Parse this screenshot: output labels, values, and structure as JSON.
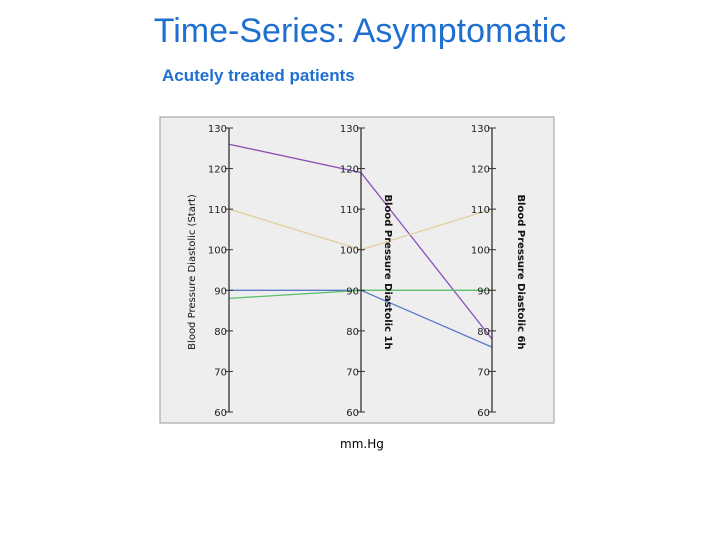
{
  "page": {
    "title": "Time-Series: Asymptomatic",
    "subtitle": "Acutely treated patients",
    "unit_label": "mm.Hg"
  },
  "chart_data": {
    "type": "line",
    "subtype": "parallel-coordinates",
    "axes": [
      {
        "label": "Blood Pressure Diastolic (Start)",
        "ticks": [
          "130",
          "120",
          "110",
          "100",
          "90",
          "80",
          "70",
          "60"
        ],
        "range": [
          60,
          130
        ]
      },
      {
        "label": "Blood Pressure Diastolic 1h",
        "ticks": [
          "130",
          "120",
          "110",
          "100",
          "90",
          "80",
          "70",
          "60"
        ],
        "range": [
          60,
          130
        ]
      },
      {
        "label": "Blood Pressure Diastolic 6h",
        "ticks": [
          "130",
          "120",
          "110",
          "100",
          "90",
          "80",
          "70",
          "60"
        ],
        "range": [
          60,
          130
        ]
      }
    ],
    "series": [
      {
        "values": [
          126,
          119,
          78
        ],
        "color": "#8b4fb8"
      },
      {
        "values": [
          110,
          100,
          110
        ],
        "color": "#e2cf9a"
      },
      {
        "values": [
          90,
          90,
          76
        ],
        "color": "#5d78c8"
      },
      {
        "values": [
          88,
          90,
          90
        ],
        "color": "#5cbf6a"
      }
    ],
    "background": "#eeeeee",
    "grid": false
  }
}
